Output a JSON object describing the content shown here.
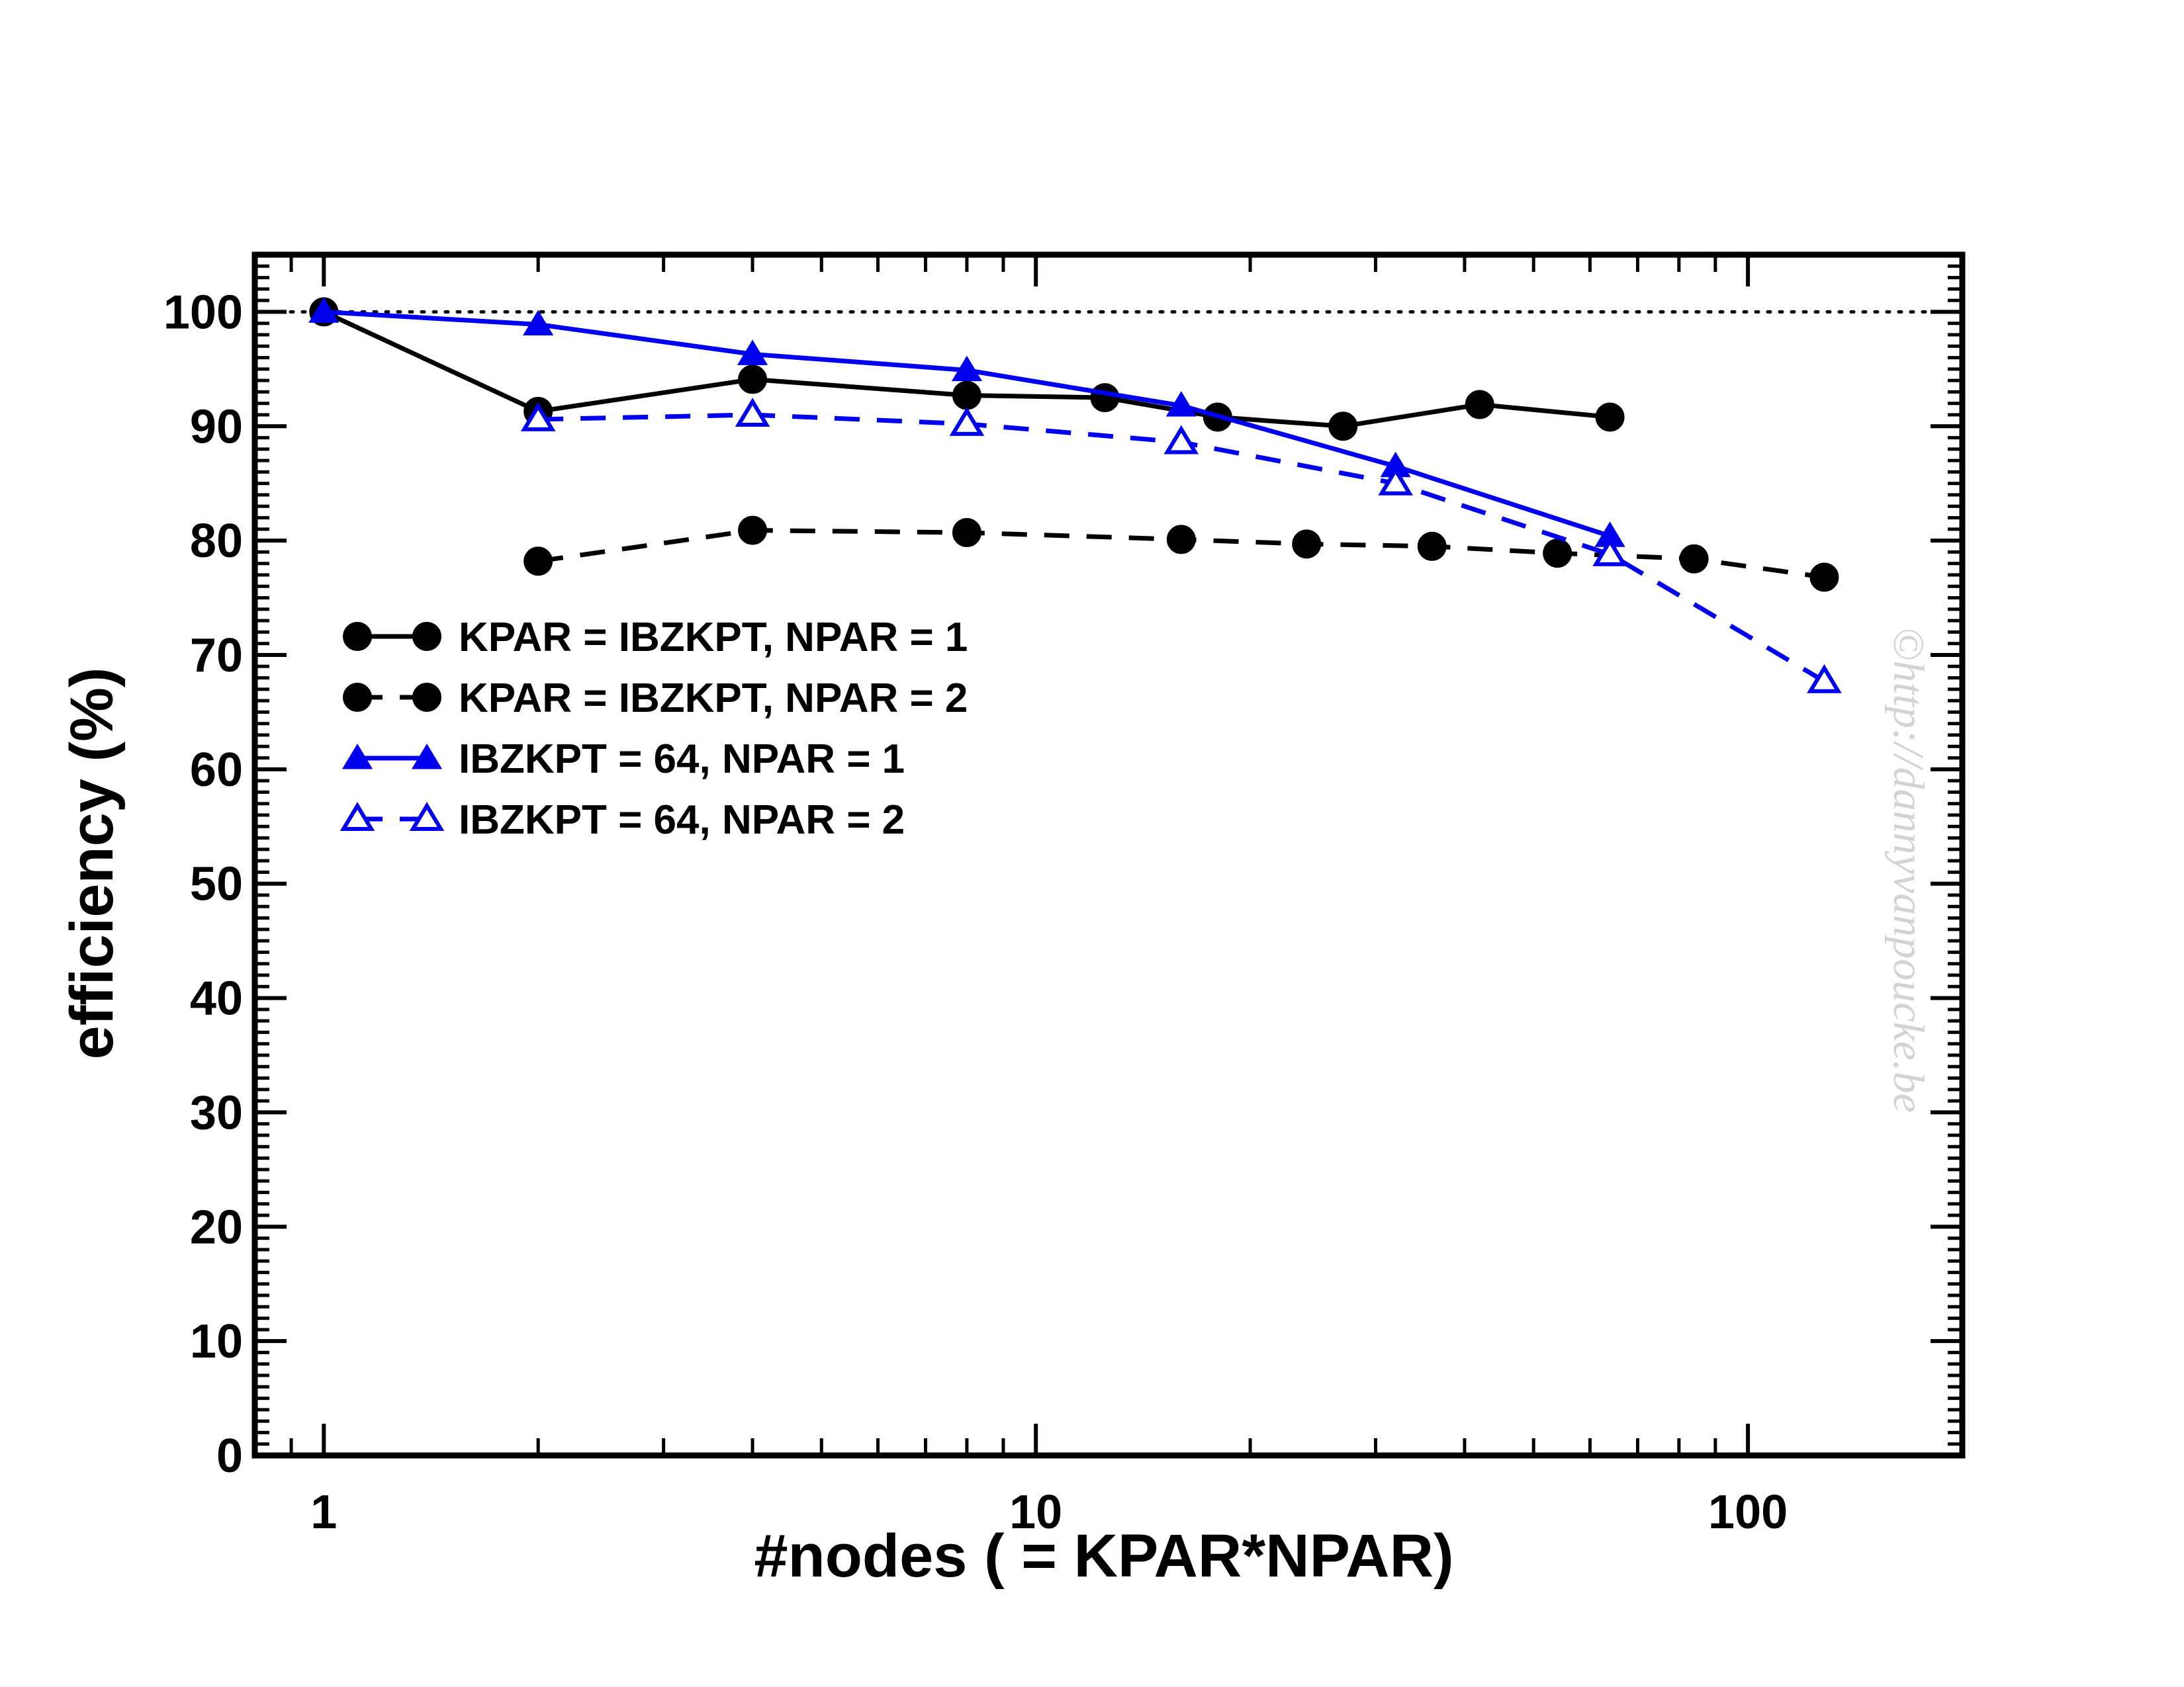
{
  "chart_data": {
    "type": "line",
    "xlabel": "#nodes ( = KPAR*NPAR)",
    "ylabel": "efficiency (%)",
    "xscale": "log",
    "xlim": [
      0.8,
      200
    ],
    "ylim": [
      0,
      105
    ],
    "x_ticks": [
      1,
      10,
      100
    ],
    "x_tick_labels": [
      "1",
      "10",
      "100"
    ],
    "y_ticks": [
      0,
      10,
      20,
      30,
      40,
      50,
      60,
      70,
      80,
      90,
      100
    ],
    "y_tick_labels": [
      "0",
      "10",
      "20",
      "30",
      "40",
      "50",
      "60",
      "70",
      "80",
      "90",
      "100"
    ],
    "reference_line": {
      "y": 100,
      "style": "dotted",
      "color": "#000000"
    },
    "legend_position": "center-left",
    "series": [
      {
        "name": "KPAR = IBZKPT, NPAR = 1",
        "color": "#000000",
        "line_style": "solid",
        "marker": "filled-circle",
        "x": [
          1,
          2,
          4,
          8,
          12.5,
          18,
          27,
          42,
          64
        ],
        "y": [
          100,
          91.3,
          94.1,
          92.7,
          92.5,
          90.8,
          90.0,
          91.9,
          90.8
        ]
      },
      {
        "name": "KPAR = IBZKPT, NPAR = 2",
        "color": "#000000",
        "line_style": "dashed",
        "marker": "filled-circle",
        "x": [
          2,
          4,
          8,
          16,
          24,
          36,
          54,
          84,
          128
        ],
        "y": [
          78.2,
          80.9,
          80.7,
          80.1,
          79.7,
          79.5,
          78.9,
          78.4,
          76.8
        ]
      },
      {
        "name": "IBZKPT = 64, NPAR = 1",
        "color": "#0000ee",
        "line_style": "solid",
        "marker": "filled-triangle",
        "x": [
          1,
          2,
          4,
          8,
          16,
          32,
          64
        ],
        "y": [
          100,
          98.9,
          96.3,
          94.9,
          91.8,
          86.5,
          80.4
        ]
      },
      {
        "name": "IBZKPT = 64, NPAR = 2",
        "color": "#0000ee",
        "line_style": "dashed",
        "marker": "open-triangle",
        "x": [
          2,
          4,
          8,
          16,
          32,
          64,
          128
        ],
        "y": [
          90.6,
          91.0,
          90.2,
          88.6,
          85.0,
          78.8,
          67.7
        ]
      }
    ],
    "watermark": "©http://dannyvanpoucke.be"
  }
}
